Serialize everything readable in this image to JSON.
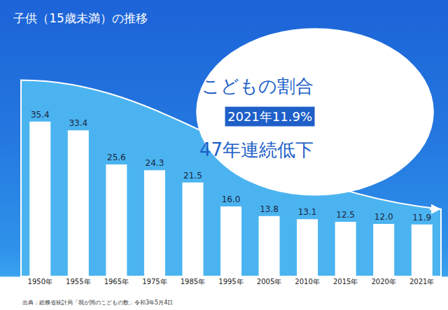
{
  "chart_data": {
    "type": "bar",
    "title": "子供（15歳未満）の推移",
    "categories": [
      "1950年",
      "1955年",
      "1965年",
      "1975年",
      "1985年",
      "1995年",
      "2005年",
      "2010年",
      "2015年",
      "2020年",
      "2021年"
    ],
    "values": [
      35.4,
      33.4,
      25.6,
      24.3,
      21.5,
      16.0,
      13.8,
      13.1,
      12.5,
      12.0,
      11.9
    ],
    "value_labels": [
      "35.4",
      "33.4",
      "25.6",
      "24.3",
      "21.5",
      "16.0",
      "13.8",
      "13.1",
      "12.5",
      "12.0",
      "11.9"
    ],
    "color": "#ffffff",
    "ylim": [
      0,
      44
    ],
    "grid": false,
    "data_labels": true,
    "tick_labels": "x",
    "annotations": [
      "こどもの割合",
      "2021年11.9%",
      "47年連続低下"
    ],
    "source": "出典：総務省統計局「我が国のこどもの数」令和3年5月4日"
  }
}
